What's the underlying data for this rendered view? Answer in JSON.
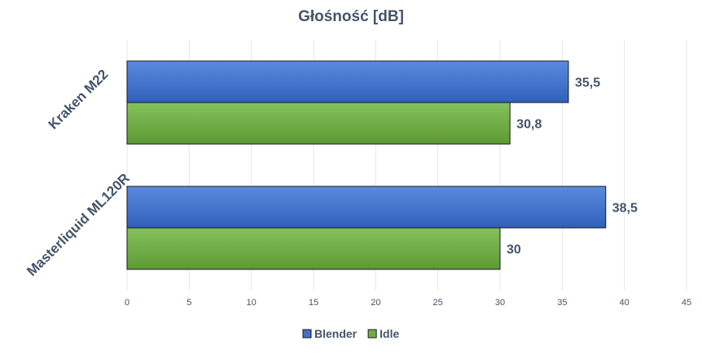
{
  "chart_data": {
    "type": "bar",
    "orientation": "horizontal",
    "title": "Głośność [dB]",
    "categories": [
      "Kraken M22",
      "Masterliquid ML120R"
    ],
    "series": [
      {
        "name": "Blender",
        "values": [
          35.5,
          38.5
        ],
        "labels": [
          "35,5",
          "38,5"
        ],
        "color": "#4472c4"
      },
      {
        "name": "Idle",
        "values": [
          30.8,
          30
        ],
        "labels": [
          "30,8",
          "30"
        ],
        "color": "#70ad47"
      }
    ],
    "xlim": [
      0,
      45
    ],
    "xticks": [
      0,
      5,
      10,
      15,
      20,
      25,
      30,
      35,
      40,
      45
    ],
    "xtick_labels": [
      "0",
      "5",
      "10",
      "15",
      "20",
      "25",
      "30",
      "35",
      "40",
      "45"
    ],
    "grid": true,
    "legend_position": "bottom"
  }
}
